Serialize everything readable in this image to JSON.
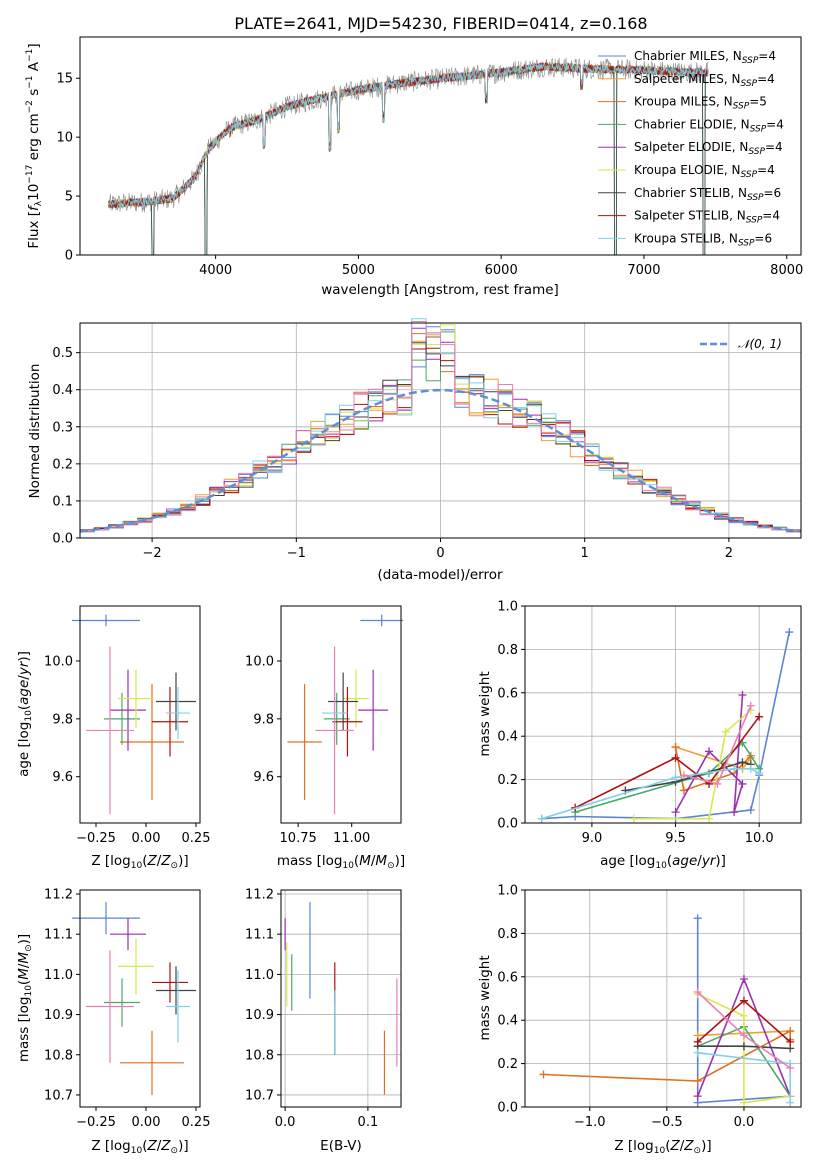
{
  "figure_title": "PLATE=2641, MJD=54230, FIBERID=0414, z=0.168",
  "colors": {
    "Chabrier MILES": "#5b84d6",
    "Salpeter MILES": "#f0a030",
    "Kroupa MILES": "#e07020",
    "Chabrier ELODIE": "#4aa86a",
    "Salpeter ELODIE": "#9b30b0",
    "Kroupa ELODIE": "#d8e84a",
    "Chabrier STELIB": "#444444",
    "Salpeter STELIB": "#b01010",
    "Kroupa STELIB": "#80d0e8",
    "pink": "#e880b8",
    "normal": "#5b8fd6"
  },
  "chart_data": [
    {
      "id": "spectrum",
      "type": "line",
      "xlabel": "wavelength [Angstrom, rest frame]",
      "ylabel": "Flux [fλ10⁻¹⁷ erg cm⁻² s⁻¹ A⁻¹]",
      "xlim": [
        3050,
        8100
      ],
      "ylim": [
        0,
        18.5
      ],
      "xticks": [
        4000,
        5000,
        6000,
        7000,
        8000
      ],
      "yticks": [
        0,
        5,
        10,
        15
      ],
      "legend_position": "right",
      "legend": [
        {
          "label": "Chabrier MILES, N_SSP=4",
          "color_key": "Chabrier MILES"
        },
        {
          "label": "Salpeter MILES, N_SSP=4",
          "color_key": "Salpeter MILES"
        },
        {
          "label": "Kroupa MILES, N_SSP=5",
          "color_key": "Kroupa MILES"
        },
        {
          "label": "Chabrier ELODIE, N_SSP=4",
          "color_key": "Chabrier ELODIE"
        },
        {
          "label": "Salpeter ELODIE, N_SSP=4",
          "color_key": "Salpeter ELODIE"
        },
        {
          "label": "Kroupa ELODIE, N_SSP=4",
          "color_key": "Kroupa ELODIE"
        },
        {
          "label": "Chabrier STELIB, N_SSP=6",
          "color_key": "Chabrier STELIB"
        },
        {
          "label": "Salpeter STELIB, N_SSP=4",
          "color_key": "Salpeter STELIB"
        },
        {
          "label": "Kroupa STELIB, N_SSP=6",
          "color_key": "Kroupa STELIB"
        }
      ],
      "continuum_points": [
        [
          3250,
          4.3
        ],
        [
          3500,
          4.5
        ],
        [
          3700,
          4.8
        ],
        [
          3850,
          6.5
        ],
        [
          3950,
          9.0
        ],
        [
          4100,
          10.8
        ],
        [
          4300,
          11.5
        ],
        [
          4500,
          12.6
        ],
        [
          4800,
          13.5
        ],
        [
          5000,
          14.0
        ],
        [
          5300,
          14.6
        ],
        [
          5600,
          15.0
        ],
        [
          6000,
          15.5
        ],
        [
          6300,
          16.0
        ],
        [
          6600,
          15.8
        ],
        [
          7000,
          15.7
        ],
        [
          7300,
          15.5
        ],
        [
          7450,
          15.5
        ]
      ],
      "absorption_features": [
        [
          3560,
          0
        ],
        [
          3933,
          0
        ],
        [
          6800,
          0
        ],
        [
          7420,
          0
        ],
        [
          4102,
          10.0
        ],
        [
          4340,
          9.0
        ],
        [
          4800,
          8.7
        ],
        [
          4861,
          10.3
        ],
        [
          5175,
          11.2
        ],
        [
          5895,
          12.8
        ],
        [
          6563,
          14.0
        ]
      ]
    },
    {
      "id": "residual_hist",
      "type": "histogram",
      "xlabel": "(data-model)/error",
      "ylabel": "Normed distribution",
      "xlim": [
        -2.5,
        2.5
      ],
      "ylim": [
        0,
        0.58
      ],
      "xticks": [
        -2,
        -1,
        0,
        1,
        2
      ],
      "yticks": [
        0.0,
        0.1,
        0.2,
        0.3,
        0.4,
        0.5
      ],
      "grid": true,
      "legend_position": "top-right",
      "legend": [
        {
          "label": "𝒩(0, 1)",
          "color_key": "normal",
          "style": "dashed"
        }
      ],
      "bin_width": 0.1
    },
    {
      "id": "age_vs_Z",
      "type": "errorbar",
      "xlabel": "Z [log₁₀(Z/Z⊙)]",
      "ylabel": "age  [log₁₀(age/yr)]",
      "xlim": [
        -0.33,
        0.27
      ],
      "ylim": [
        9.44,
        10.19
      ],
      "xticks": [
        -0.25,
        0.0,
        0.25
      ],
      "yticks": [
        9.6,
        9.8,
        10.0
      ],
      "points": [
        {
          "color_key": "Chabrier MILES",
          "x": -0.2,
          "xerr": 0.17,
          "y": 10.14,
          "yerr": 0.02
        },
        {
          "color_key": "Kroupa MILES",
          "x": 0.03,
          "xerr": 0.16,
          "y": 9.72,
          "yerr": 0.2
        },
        {
          "color_key": "Chabrier ELODIE",
          "x": -0.12,
          "xerr": 0.09,
          "y": 9.8,
          "yerr": 0.09
        },
        {
          "color_key": "Salpeter ELODIE",
          "x": -0.09,
          "xerr": 0.09,
          "y": 9.83,
          "yerr": 0.14
        },
        {
          "color_key": "Kroupa ELODIE",
          "x": -0.05,
          "xerr": 0.09,
          "y": 9.87,
          "yerr": 0.1
        },
        {
          "color_key": "Chabrier STELIB",
          "x": 0.15,
          "xerr": 0.1,
          "y": 9.86,
          "yerr": 0.1
        },
        {
          "color_key": "Salpeter STELIB",
          "x": 0.12,
          "xerr": 0.09,
          "y": 9.79,
          "yerr": 0.12
        },
        {
          "color_key": "Kroupa STELIB",
          "x": 0.16,
          "xerr": 0.06,
          "y": 9.82,
          "yerr": 0.09
        },
        {
          "color_key": "pink",
          "x": -0.18,
          "xerr": 0.12,
          "y": 9.76,
          "yerr": 0.29
        }
      ]
    },
    {
      "id": "age_vs_mass",
      "type": "errorbar",
      "xlabel": "mass [log₁₀(M/M⊙)]",
      "ylabel": "",
      "xlim": [
        10.67,
        11.23
      ],
      "ylim": [
        9.44,
        10.19
      ],
      "xticks": [
        10.75,
        11.0
      ],
      "yticks": [
        9.6,
        9.8,
        10.0
      ],
      "points": [
        {
          "color_key": "Chabrier MILES",
          "x": 11.14,
          "xerr": 0.1,
          "y": 10.14,
          "yerr": 0.02
        },
        {
          "color_key": "Kroupa MILES",
          "x": 10.78,
          "xerr": 0.08,
          "y": 9.72,
          "yerr": 0.2
        },
        {
          "color_key": "Chabrier ELODIE",
          "x": 10.93,
          "xerr": 0.06,
          "y": 9.8,
          "yerr": 0.09
        },
        {
          "color_key": "Salpeter ELODIE",
          "x": 11.1,
          "xerr": 0.07,
          "y": 9.83,
          "yerr": 0.14
        },
        {
          "color_key": "Kroupa ELODIE",
          "x": 11.02,
          "xerr": 0.06,
          "y": 9.87,
          "yerr": 0.1
        },
        {
          "color_key": "Chabrier STELIB",
          "x": 10.96,
          "xerr": 0.07,
          "y": 9.86,
          "yerr": 0.1
        },
        {
          "color_key": "Salpeter STELIB",
          "x": 10.98,
          "xerr": 0.07,
          "y": 9.79,
          "yerr": 0.12
        },
        {
          "color_key": "Kroupa STELIB",
          "x": 10.92,
          "xerr": 0.06,
          "y": 9.82,
          "yerr": 0.09
        },
        {
          "color_key": "pink",
          "x": 10.92,
          "xerr": 0.09,
          "y": 9.76,
          "yerr": 0.29
        }
      ]
    },
    {
      "id": "massweight_vs_age",
      "type": "line",
      "xlabel": "age  [log₁₀(age/yr)]",
      "ylabel": "mass weight",
      "xlim": [
        8.6,
        10.25
      ],
      "ylim": [
        0,
        1.0
      ],
      "xticks": [
        9.0,
        9.5,
        10.0
      ],
      "yticks": [
        0.0,
        0.2,
        0.4,
        0.6,
        0.8,
        1.0
      ],
      "grid": true,
      "series": [
        {
          "color_key": "Chabrier MILES",
          "x": [
            8.7,
            8.9,
            9.5,
            9.95,
            10.0,
            10.18
          ],
          "y": [
            0.02,
            0.03,
            0.02,
            0.06,
            0.22,
            0.88
          ]
        },
        {
          "color_key": "Salpeter MILES",
          "x": [
            9.5,
            9.9,
            9.95
          ],
          "y": [
            0.35,
            0.25,
            0.3
          ]
        },
        {
          "color_key": "Kroupa MILES",
          "x": [
            9.5,
            9.55,
            9.85,
            9.95
          ],
          "y": [
            0.35,
            0.15,
            0.23,
            0.31
          ]
        },
        {
          "color_key": "Chabrier ELODIE",
          "x": [
            8.9,
            9.7,
            9.9,
            10.0
          ],
          "y": [
            0.05,
            0.23,
            0.37,
            0.25
          ]
        },
        {
          "color_key": "Salpeter ELODIE",
          "x": [
            9.5,
            9.7,
            9.9,
            9.85,
            9.9
          ],
          "y": [
            0.05,
            0.33,
            0.18,
            0.05,
            0.59
          ]
        },
        {
          "color_key": "Kroupa ELODIE",
          "x": [
            9.25,
            9.7,
            9.8,
            9.95
          ],
          "y": [
            0.02,
            0.02,
            0.42,
            0.52
          ]
        },
        {
          "color_key": "Chabrier STELIB",
          "x": [
            9.2,
            9.5,
            9.9,
            9.95
          ],
          "y": [
            0.15,
            0.19,
            0.28,
            0.27
          ]
        },
        {
          "color_key": "Salpeter STELIB",
          "x": [
            8.9,
            9.5,
            9.7,
            10.0
          ],
          "y": [
            0.07,
            0.3,
            0.18,
            0.49
          ]
        },
        {
          "color_key": "Kroupa STELIB",
          "x": [
            8.7,
            9.5,
            9.85,
            9.95,
            10.0
          ],
          "y": [
            0.02,
            0.21,
            0.25,
            0.25,
            0.23
          ]
        },
        {
          "color_key": "pink",
          "x": [
            9.55,
            9.75,
            9.95
          ],
          "y": [
            0.22,
            0.18,
            0.54
          ]
        }
      ]
    },
    {
      "id": "mass_vs_Z",
      "type": "errorbar",
      "xlabel": "Z [log₁₀(Z/Z⊙)]",
      "ylabel": "mass [log₁₀(M/M⊙)]",
      "xlim": [
        -0.33,
        0.27
      ],
      "ylim": [
        10.67,
        11.21
      ],
      "xticks": [
        -0.25,
        0.0,
        0.25
      ],
      "yticks": [
        10.7,
        10.8,
        10.9,
        11.0,
        11.1,
        11.2
      ],
      "points": [
        {
          "color_key": "Chabrier MILES",
          "x": -0.2,
          "xerr": 0.17,
          "y": 11.14,
          "yerr": 0.04
        },
        {
          "color_key": "Kroupa MILES",
          "x": 0.03,
          "xerr": 0.16,
          "y": 10.78,
          "yerr": 0.08
        },
        {
          "color_key": "Chabrier ELODIE",
          "x": -0.12,
          "xerr": 0.09,
          "y": 10.93,
          "yerr": 0.06
        },
        {
          "color_key": "Salpeter ELODIE",
          "x": -0.09,
          "xerr": 0.09,
          "y": 11.1,
          "yerr": 0.04
        },
        {
          "color_key": "Kroupa ELODIE",
          "x": -0.05,
          "xerr": 0.09,
          "y": 11.02,
          "yerr": 0.07
        },
        {
          "color_key": "Chabrier STELIB",
          "x": 0.15,
          "xerr": 0.1,
          "y": 10.96,
          "yerr": 0.06
        },
        {
          "color_key": "Salpeter STELIB",
          "x": 0.12,
          "xerr": 0.09,
          "y": 10.98,
          "yerr": 0.05
        },
        {
          "color_key": "Kroupa STELIB",
          "x": 0.16,
          "xerr": 0.06,
          "y": 10.92,
          "yerr": 0.09
        },
        {
          "color_key": "pink",
          "x": -0.18,
          "xerr": 0.12,
          "y": 10.92,
          "yerr": 0.14
        }
      ]
    },
    {
      "id": "mass_vs_ebv",
      "type": "errorbar",
      "xlabel": "E(B-V)",
      "ylabel": "",
      "xlim": [
        -0.005,
        0.14
      ],
      "ylim": [
        10.67,
        11.21
      ],
      "xticks": [
        0.0,
        0.1
      ],
      "yticks": [
        10.7,
        10.8,
        10.9,
        11.0,
        11.1,
        11.2
      ],
      "points": [
        {
          "color_key": "Chabrier MILES",
          "x": 0.03,
          "y": 11.06,
          "yerr": 0.12
        },
        {
          "color_key": "Kroupa MILES",
          "x": 0.12,
          "y": 10.78,
          "yerr": 0.08
        },
        {
          "color_key": "Chabrier ELODIE",
          "x": 0.008,
          "y": 10.98,
          "yerr": 0.07
        },
        {
          "color_key": "Salpeter ELODIE",
          "x": 0.0,
          "y": 11.1,
          "yerr": 0.04
        },
        {
          "color_key": "Kroupa ELODIE",
          "x": 0.002,
          "y": 11.0,
          "yerr": 0.08
        },
        {
          "color_key": "Chabrier STELIB",
          "x": 0.06,
          "y": 10.88,
          "yerr": 0.08
        },
        {
          "color_key": "Salpeter STELIB",
          "x": 0.06,
          "y": 10.98,
          "yerr": 0.05
        },
        {
          "color_key": "Kroupa STELIB",
          "x": 0.06,
          "y": 10.88,
          "yerr": 0.08
        },
        {
          "color_key": "pink",
          "x": 0.135,
          "y": 10.88,
          "yerr": 0.11
        }
      ]
    },
    {
      "id": "massweight_vs_Z",
      "type": "line",
      "xlabel": "Z [log₁₀(Z/Z⊙)]",
      "ylabel": "mass weight",
      "xlim": [
        -1.42,
        0.37
      ],
      "ylim": [
        0,
        1.0
      ],
      "xticks": [
        -1.0,
        -0.5,
        0.0
      ],
      "yticks": [
        0.0,
        0.2,
        0.4,
        0.6,
        0.8,
        1.0
      ],
      "grid": true,
      "series": [
        {
          "color_key": "Chabrier MILES",
          "x": [
            -0.3,
            -0.3,
            0.3
          ],
          "y": [
            0.87,
            0.02,
            0.05
          ]
        },
        {
          "color_key": "Salpeter MILES",
          "x": [
            -0.3,
            0.3
          ],
          "y": [
            0.33,
            0.35
          ]
        },
        {
          "color_key": "Kroupa MILES",
          "x": [
            -1.3,
            -0.3,
            0.3,
            0.3
          ],
          "y": [
            0.15,
            0.12,
            0.35,
            0.31
          ]
        },
        {
          "color_key": "Chabrier ELODIE",
          "x": [
            -0.3,
            0.0,
            0.3
          ],
          "y": [
            0.28,
            0.37,
            0.05
          ]
        },
        {
          "color_key": "Salpeter ELODIE",
          "x": [
            -0.3,
            0.0,
            0.3
          ],
          "y": [
            0.05,
            0.59,
            0.05
          ]
        },
        {
          "color_key": "Kroupa ELODIE",
          "x": [
            -0.3,
            0.0,
            0.0,
            0.3
          ],
          "y": [
            0.52,
            0.42,
            0.02,
            0.05
          ]
        },
        {
          "color_key": "Chabrier STELIB",
          "x": [
            -0.3,
            0.0,
            0.3
          ],
          "y": [
            0.28,
            0.28,
            0.27
          ]
        },
        {
          "color_key": "Salpeter STELIB",
          "x": [
            -0.3,
            0.0,
            0.3
          ],
          "y": [
            0.3,
            0.49,
            0.3
          ]
        },
        {
          "color_key": "Kroupa STELIB",
          "x": [
            -0.3,
            0.3,
            0.3
          ],
          "y": [
            0.25,
            0.2,
            0.02
          ]
        },
        {
          "color_key": "pink",
          "x": [
            -0.3,
            0.0,
            0.3
          ],
          "y": [
            0.53,
            0.33,
            0.18
          ]
        }
      ]
    }
  ]
}
